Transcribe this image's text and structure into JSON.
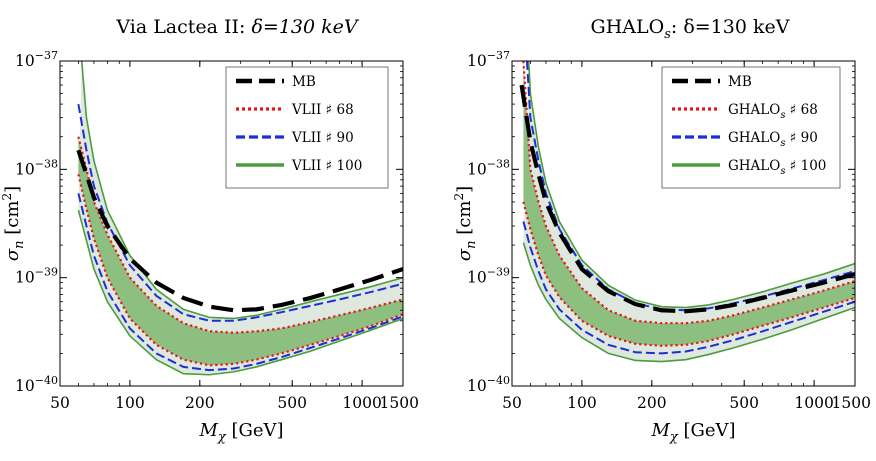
{
  "chart_data": [
    {
      "type": "line",
      "panel": "left",
      "title": "Via Lactea II: δ=130 keV",
      "title_main": "Via Lactea II: ",
      "title_delta": "δ=130 keV",
      "xlabel_symbol": "M",
      "xlabel_sub": "χ",
      "xlabel_unit": " [GeV]",
      "ylabel_symbol": "σ",
      "ylabel_sub": "n",
      "ylabel_unit_open": " [cm",
      "ylabel_unit_exp": "2",
      "ylabel_unit_close": "]",
      "xscale": "log",
      "yscale": "log",
      "xlim": [
        50,
        1500
      ],
      "ylim": [
        1e-40,
        1e-37
      ],
      "xticks": [
        50,
        100,
        200,
        500,
        1000,
        1500
      ],
      "xtick_labels": [
        "50",
        "100",
        "200",
        "500",
        "1000",
        "1500"
      ],
      "yticks": [
        1e-40,
        1e-39,
        1e-38,
        1e-37
      ],
      "ytick_base": "10",
      "ytick_exps": [
        "−40",
        "−39",
        "−38",
        "−37"
      ],
      "legend_position": "top-right",
      "series": [
        {
          "name": "MB",
          "style": "black-long-dash",
          "color": "#000000",
          "x": [
            60,
            65,
            70,
            80,
            100,
            130,
            170,
            220,
            280,
            350,
            450,
            600,
            800,
            1100,
            1500
          ],
          "y": [
            1.5e-38,
            9e-39,
            5.5e-39,
            3e-39,
            1.5e-39,
            9e-40,
            6.5e-40,
            5.4e-40,
            5e-40,
            5.1e-40,
            5.6e-40,
            6.5e-40,
            7.8e-40,
            9.6e-40,
            1.2e-39
          ]
        },
        {
          "name": "VLII ♯ 68",
          "label_main": "VLII ",
          "label_hash": "♯",
          "label_num": " 68",
          "style": "red-dotted",
          "color": "#e8141c",
          "x": [
            60,
            65,
            70,
            80,
            100,
            130,
            170,
            220,
            280,
            350,
            450,
            600,
            800,
            1100,
            1500
          ],
          "y": [
            2e-38,
            1e-38,
            5e-39,
            2.5e-39,
            1e-39,
            5.5e-40,
            3.8e-40,
            3.2e-40,
            3.1e-40,
            3.2e-40,
            3.4e-40,
            3.9e-40,
            4.5e-40,
            5.3e-40,
            6.3e-40
          ]
        },
        {
          "name": "VLII ♯ 90",
          "label_main": "VLII ",
          "label_hash": "♯",
          "label_num": " 90",
          "style": "blue-dashed",
          "color": "#1c2fd6",
          "x": [
            60,
            65,
            70,
            80,
            100,
            130,
            170,
            220,
            280,
            350,
            450,
            600,
            800,
            1100,
            1500
          ],
          "y": [
            4e-38,
            1.5e-38,
            7e-39,
            3.2e-39,
            1.3e-39,
            6.8e-40,
            4.6e-40,
            4e-40,
            4e-40,
            4.3e-40,
            4.8e-40,
            5.5e-40,
            6.3e-40,
            7.4e-40,
            8.8e-40
          ]
        },
        {
          "name": "VLII ♯ 100",
          "label_main": "VLII ",
          "label_hash": "♯",
          "label_num": " 100",
          "style": "green-solid",
          "color": "#4a9d3c",
          "x": [
            62,
            65,
            70,
            80,
            100,
            130,
            170,
            220,
            280,
            350,
            450,
            600,
            800,
            1100,
            1500
          ],
          "y": [
            1e-37,
            3e-38,
            1.2e-38,
            4.2e-39,
            1.6e-39,
            7.8e-40,
            5.1e-40,
            4.3e-40,
            4.2e-40,
            4.5e-40,
            5.1e-40,
            6e-40,
            7e-40,
            8.3e-40,
            1e-39
          ]
        }
      ],
      "bands": [
        {
          "name": "light band",
          "color": "#dfe8df",
          "upper_x": [
            62,
            65,
            70,
            80,
            100,
            130,
            170,
            220,
            280,
            350,
            450,
            600,
            800,
            1100,
            1500
          ],
          "upper_y": [
            1e-37,
            3e-38,
            1.2e-38,
            4.2e-39,
            1.6e-39,
            7.8e-40,
            5.1e-40,
            4.3e-40,
            4.2e-40,
            4.5e-40,
            5.1e-40,
            6e-40,
            7e-40,
            8.3e-40,
            1e-39
          ],
          "lower_x": [
            60,
            65,
            70,
            80,
            100,
            130,
            170,
            220,
            280,
            350,
            450,
            600,
            800,
            1100,
            1500
          ],
          "lower_y": [
            4.2e-39,
            2.2e-39,
            1.2e-39,
            6e-40,
            2.9e-40,
            1.75e-40,
            1.3e-40,
            1.27e-40,
            1.35e-40,
            1.5e-40,
            1.75e-40,
            2.1e-40,
            2.6e-40,
            3.3e-40,
            4.2e-40
          ]
        },
        {
          "name": "dark band",
          "color": "#8dbf80",
          "upper_x": [
            60,
            65,
            70,
            80,
            100,
            130,
            170,
            220,
            280,
            350,
            450,
            600,
            800,
            1100,
            1500
          ],
          "upper_y": [
            2e-38,
            1e-38,
            5e-39,
            2.5e-39,
            1e-39,
            5.5e-40,
            3.8e-40,
            3.2e-40,
            3.1e-40,
            3.2e-40,
            3.4e-40,
            3.9e-40,
            4.5e-40,
            5.3e-40,
            6.3e-40
          ],
          "lower_x": [
            60,
            65,
            70,
            80,
            100,
            130,
            170,
            220,
            280,
            350,
            450,
            600,
            800,
            1100,
            1500
          ],
          "lower_y": [
            9e-39,
            4.3e-39,
            2.3e-39,
            1e-39,
            4.2e-40,
            2.4e-40,
            1.75e-40,
            1.55e-40,
            1.6e-40,
            1.75e-40,
            2e-40,
            2.4e-40,
            2.9e-40,
            3.6e-40,
            4.6e-40
          ]
        }
      ],
      "extra_lines": [
        {
          "name": "green lower outer",
          "color": "#4a9d3c",
          "style": "green-solid",
          "x": [
            60,
            65,
            70,
            80,
            100,
            130,
            170,
            220,
            280,
            350,
            450,
            600,
            800,
            1100,
            1500
          ],
          "y": [
            4.2e-39,
            2.2e-39,
            1.2e-39,
            6e-40,
            2.9e-40,
            1.75e-40,
            1.3e-40,
            1.27e-40,
            1.35e-40,
            1.5e-40,
            1.75e-40,
            2.1e-40,
            2.6e-40,
            3.3e-40,
            4.2e-40
          ]
        },
        {
          "name": "blue lower",
          "color": "#1c2fd6",
          "style": "blue-dashed",
          "x": [
            60,
            65,
            70,
            80,
            100,
            130,
            170,
            220,
            280,
            350,
            450,
            600,
            800,
            1100,
            1500
          ],
          "y": [
            6e-39,
            3e-39,
            1.6e-39,
            7.5e-40,
            3.4e-40,
            2e-40,
            1.5e-40,
            1.4e-40,
            1.45e-40,
            1.6e-40,
            1.85e-40,
            2.25e-40,
            2.75e-40,
            3.45e-40,
            4.4e-40
          ]
        },
        {
          "name": "red lower",
          "color": "#e8141c",
          "style": "red-dotted",
          "x": [
            60,
            65,
            70,
            80,
            100,
            130,
            170,
            220,
            280,
            350,
            450,
            600,
            800,
            1100,
            1500
          ],
          "y": [
            9e-39,
            4.3e-39,
            2.3e-39,
            1e-39,
            4.2e-40,
            2.4e-40,
            1.75e-40,
            1.55e-40,
            1.6e-40,
            1.75e-40,
            2e-40,
            2.4e-40,
            2.9e-40,
            3.6e-40,
            4.6e-40
          ]
        }
      ]
    },
    {
      "type": "line",
      "panel": "right",
      "title": "GHALOs: δ=130 keV",
      "title_main": "GHALO",
      "title_sub": "s",
      "title_delta": ": δ=130 keV",
      "xlabel_symbol": "M",
      "xlabel_sub": "χ",
      "xlabel_unit": " [GeV]",
      "ylabel_symbol": "σ",
      "ylabel_sub": "n",
      "ylabel_unit_open": " [cm",
      "ylabel_unit_exp": "2",
      "ylabel_unit_close": "]",
      "xscale": "log",
      "yscale": "log",
      "xlim": [
        50,
        1500
      ],
      "ylim": [
        1e-40,
        1e-37
      ],
      "xticks": [
        50,
        100,
        200,
        500,
        1000,
        1500
      ],
      "xtick_labels": [
        "50",
        "100",
        "200",
        "500",
        "1000",
        "1500"
      ],
      "yticks": [
        1e-40,
        1e-39,
        1e-38,
        1e-37
      ],
      "ytick_base": "10",
      "ytick_exps": [
        "−40",
        "−39",
        "−38",
        "−37"
      ],
      "legend_position": "top-right",
      "series": [
        {
          "name": "MB",
          "style": "black-long-dash",
          "color": "#000000",
          "x": [
            55,
            60,
            65,
            70,
            80,
            100,
            130,
            170,
            220,
            280,
            350,
            450,
            600,
            800,
            1100,
            1500
          ],
          "y": [
            6e-38,
            1.8e-38,
            9e-39,
            5e-39,
            2.6e-39,
            1.2e-39,
            7.5e-40,
            5.7e-40,
            5e-40,
            4.9e-40,
            5.1e-40,
            5.6e-40,
            6.5e-40,
            7.6e-40,
            9e-40,
            1.08e-39
          ]
        },
        {
          "name": "GHALOs ♯ 68",
          "label_main": "GHALO",
          "label_sub": "s",
          "label_hash": " ♯",
          "label_num": " 68",
          "style": "red-dotted",
          "color": "#e8141c",
          "x": [
            56,
            60,
            65,
            70,
            80,
            100,
            130,
            170,
            220,
            280,
            350,
            450,
            600,
            800,
            1100,
            1500
          ],
          "y": [
            1e-37,
            1e-38,
            5e-39,
            3e-39,
            1.6e-39,
            8e-40,
            5e-40,
            4e-40,
            3.8e-40,
            3.8e-40,
            4e-40,
            4.5e-40,
            5.3e-40,
            6.3e-40,
            7.6e-40,
            9.3e-40
          ]
        },
        {
          "name": "GHALOs ♯ 90",
          "label_main": "GHALO",
          "label_sub": "s",
          "label_hash": " ♯",
          "label_num": " 90",
          "style": "blue-dashed",
          "color": "#1c2fd6",
          "x": [
            58,
            60,
            65,
            70,
            80,
            100,
            130,
            170,
            220,
            280,
            350,
            450,
            600,
            800,
            1100,
            1500
          ],
          "y": [
            1e-37,
            3e-38,
            1.2e-38,
            6e-39,
            2.8e-39,
            1.3e-39,
            7.8e-40,
            5.8e-40,
            5.1e-40,
            5e-40,
            5.2e-40,
            5.8e-40,
            6.7e-40,
            7.9e-40,
            9.5e-40,
            1.15e-39
          ]
        },
        {
          "name": "GHALOs ♯ 100",
          "label_main": "GHALO",
          "label_sub": "s",
          "label_hash": " ♯",
          "label_num": " 100",
          "style": "green-solid",
          "color": "#4a9d3c",
          "x": [
            59,
            60,
            65,
            70,
            80,
            100,
            130,
            170,
            220,
            280,
            350,
            450,
            600,
            800,
            1100,
            1500
          ],
          "y": [
            1e-37,
            5e-38,
            1.6e-38,
            7.5e-39,
            3.3e-39,
            1.45e-39,
            8.5e-40,
            6.2e-40,
            5.4e-40,
            5.3e-40,
            5.6e-40,
            6.3e-40,
            7.4e-40,
            8.9e-40,
            1.08e-39,
            1.35e-39
          ]
        }
      ],
      "bands": [
        {
          "name": "light band",
          "color": "#dfe8df",
          "upper_x": [
            59,
            60,
            65,
            70,
            80,
            100,
            130,
            170,
            220,
            280,
            350,
            450,
            600,
            800,
            1100,
            1500
          ],
          "upper_y": [
            1e-37,
            5e-38,
            1.6e-38,
            7.5e-39,
            3.3e-39,
            1.45e-39,
            8.5e-40,
            6.2e-40,
            5.4e-40,
            5.3e-40,
            5.6e-40,
            6.3e-40,
            7.4e-40,
            8.9e-40,
            1.08e-39,
            1.35e-39
          ],
          "lower_x": [
            56,
            60,
            65,
            70,
            80,
            100,
            130,
            170,
            220,
            280,
            350,
            450,
            600,
            800,
            1100,
            1500
          ],
          "lower_y": [
            2.1e-39,
            1.3e-39,
            8.5e-40,
            6.3e-40,
            4.2e-40,
            2.8e-40,
            2e-40,
            1.72e-40,
            1.68e-40,
            1.75e-40,
            1.95e-40,
            2.25e-40,
            2.7e-40,
            3.3e-40,
            4.2e-40,
            5.3e-40
          ]
        },
        {
          "name": "dark band",
          "color": "#8dbf80",
          "upper_x": [
            56,
            60,
            65,
            70,
            80,
            100,
            130,
            170,
            220,
            280,
            350,
            450,
            600,
            800,
            1100,
            1500
          ],
          "upper_y": [
            1e-37,
            1e-38,
            5e-39,
            3e-39,
            1.6e-39,
            8e-40,
            5e-40,
            4e-40,
            3.8e-40,
            3.8e-40,
            4e-40,
            4.5e-40,
            5.3e-40,
            6.3e-40,
            7.6e-40,
            9.3e-40
          ],
          "lower_x": [
            56,
            60,
            65,
            70,
            80,
            100,
            130,
            170,
            220,
            280,
            350,
            450,
            600,
            800,
            1100,
            1500
          ],
          "lower_y": [
            5e-39,
            2.8e-39,
            1.6e-39,
            1.05e-39,
            6.6e-40,
            4e-40,
            2.9e-40,
            2.45e-40,
            2.35e-40,
            2.4e-40,
            2.6e-40,
            3e-40,
            3.6e-40,
            4.3e-40,
            5.3e-40,
            6.5e-40
          ]
        }
      ],
      "extra_lines": [
        {
          "name": "green lower outer",
          "color": "#4a9d3c",
          "style": "green-solid",
          "x": [
            56,
            60,
            65,
            70,
            80,
            100,
            130,
            170,
            220,
            280,
            350,
            450,
            600,
            800,
            1100,
            1500
          ],
          "y": [
            2.1e-39,
            1.3e-39,
            8.5e-40,
            6.3e-40,
            4.2e-40,
            2.8e-40,
            2e-40,
            1.72e-40,
            1.68e-40,
            1.75e-40,
            1.95e-40,
            2.25e-40,
            2.7e-40,
            3.3e-40,
            4.2e-40,
            5.3e-40
          ]
        },
        {
          "name": "blue lower",
          "color": "#1c2fd6",
          "style": "blue-dashed",
          "x": [
            56,
            60,
            65,
            70,
            80,
            100,
            130,
            170,
            220,
            280,
            350,
            450,
            600,
            800,
            1100,
            1500
          ],
          "y": [
            3.3e-39,
            1.9e-39,
            1.15e-39,
            7.8e-40,
            5.1e-40,
            3.3e-40,
            2.4e-40,
            2.05e-40,
            2e-40,
            2.08e-40,
            2.3e-40,
            2.65e-40,
            3.2e-40,
            3.9e-40,
            4.85e-40,
            6e-40
          ]
        },
        {
          "name": "red lower",
          "color": "#e8141c",
          "style": "red-dotted",
          "x": [
            56,
            60,
            65,
            70,
            80,
            100,
            130,
            170,
            220,
            280,
            350,
            450,
            600,
            800,
            1100,
            1500
          ],
          "y": [
            5e-39,
            2.8e-39,
            1.6e-39,
            1.05e-39,
            6.6e-40,
            4e-40,
            2.9e-40,
            2.45e-40,
            2.35e-40,
            2.4e-40,
            2.6e-40,
            3e-40,
            3.6e-40,
            4.3e-40,
            5.3e-40,
            6.5e-40
          ]
        }
      ]
    }
  ]
}
